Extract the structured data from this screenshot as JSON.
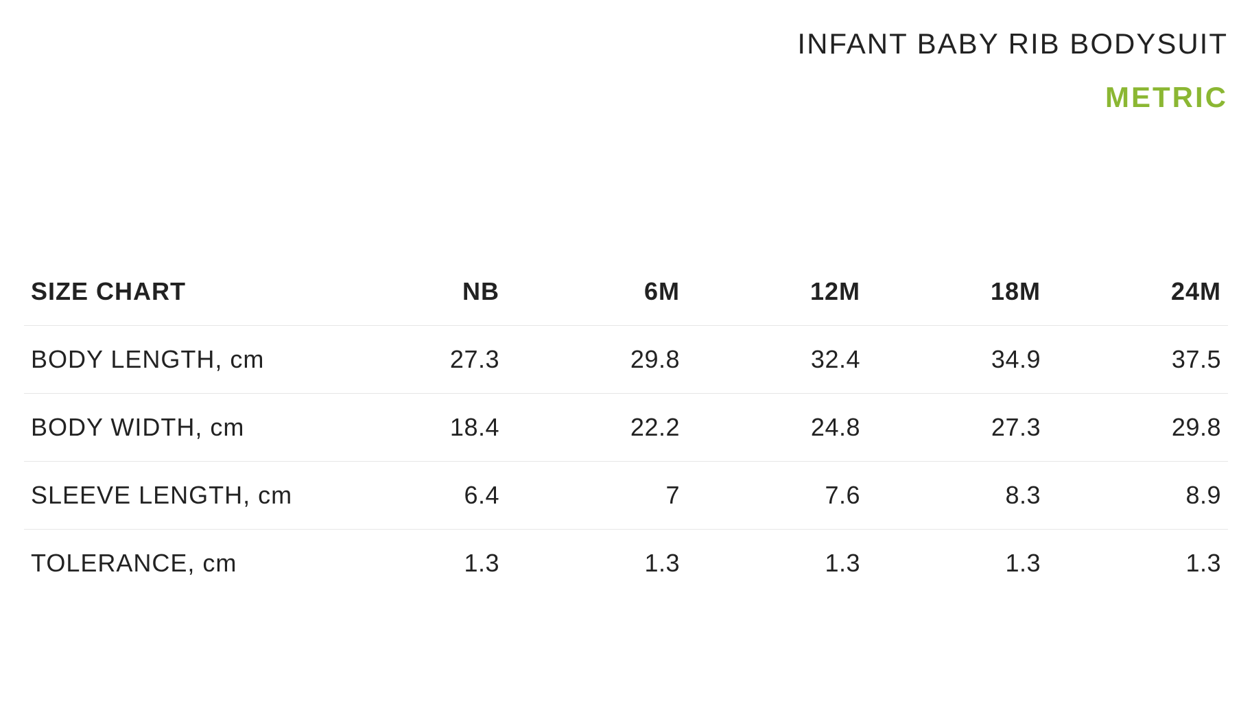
{
  "header": {
    "product_title": "INFANT BABY RIB BODYSUIT",
    "unit_label": "METRIC",
    "unit_color": "#8bb733"
  },
  "table": {
    "title": "SIZE CHART",
    "columns": [
      "NB",
      "6M",
      "12M",
      "18M",
      "24M"
    ],
    "rows": [
      {
        "label": "BODY LENGTH, cm",
        "values": [
          "27.3",
          "29.8",
          "32.4",
          "34.9",
          "37.5"
        ]
      },
      {
        "label": "BODY WIDTH, cm",
        "values": [
          "18.4",
          "22.2",
          "24.8",
          "27.3",
          "29.8"
        ]
      },
      {
        "label": "SLEEVE LENGTH, cm",
        "values": [
          "6.4",
          "7",
          "7.6",
          "8.3",
          "8.9"
        ]
      },
      {
        "label": "TOLERANCE, cm",
        "values": [
          "1.3",
          "1.3",
          "1.3",
          "1.3",
          "1.3"
        ]
      }
    ],
    "border_color": "#e6e6e6",
    "text_color": "#222222",
    "header_fontweight": 700,
    "body_fontsize": 36
  },
  "background_color": "#ffffff"
}
